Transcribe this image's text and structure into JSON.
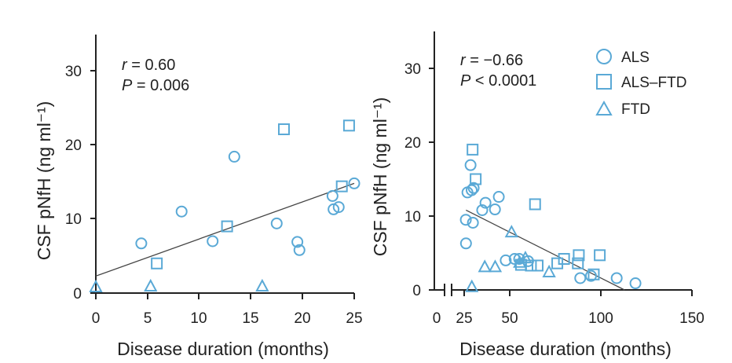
{
  "colors": {
    "marker": "#5aa9d6",
    "axis": "#222222",
    "fit_line": "#444444"
  },
  "legend": [
    {
      "label": "ALS",
      "shape": "circle"
    },
    {
      "label": "ALS–FTD",
      "shape": "square"
    },
    {
      "label": "FTD",
      "shape": "triangle"
    }
  ],
  "chart_data": [
    {
      "type": "scatter",
      "title": "",
      "xlabel": "Disease duration (months)",
      "ylabel": "CSF pNfH (ng ml⁻¹)",
      "xlim": [
        0,
        25
      ],
      "ylim": [
        0,
        35
      ],
      "xticks": [
        "0",
        "5",
        "10",
        "15",
        "20",
        "25"
      ],
      "yticks": [
        "0",
        "10",
        "20",
        "30"
      ],
      "stats": {
        "r_label": "r",
        "r_value": " = 0.60",
        "p_label": "P",
        "p_value": " = 0.006"
      },
      "fit_line": {
        "x": [
          0,
          25
        ],
        "y": [
          2.3,
          14.8
        ]
      },
      "series": [
        {
          "name": "ALS",
          "shape": "circle",
          "points": [
            [
              4.4,
              6.7
            ],
            [
              8.3,
              11.0
            ],
            [
              11.3,
              7.0
            ],
            [
              13.4,
              18.4
            ],
            [
              17.5,
              9.4
            ],
            [
              19.5,
              6.9
            ],
            [
              19.7,
              5.8
            ],
            [
              22.9,
              13.1
            ],
            [
              23.0,
              11.3
            ],
            [
              23.5,
              11.6
            ],
            [
              25.0,
              14.8
            ]
          ]
        },
        {
          "name": "ALS–FTD",
          "shape": "square",
          "points": [
            [
              5.9,
              4.0
            ],
            [
              12.7,
              9.0
            ],
            [
              18.2,
              22.1
            ],
            [
              23.8,
              14.4
            ],
            [
              24.5,
              22.6
            ]
          ]
        },
        {
          "name": "FTD",
          "shape": "triangle",
          "points": [
            [
              0.0,
              0.8
            ],
            [
              5.3,
              0.9
            ],
            [
              16.1,
              0.9
            ]
          ]
        }
      ]
    },
    {
      "type": "scatter",
      "title": "",
      "xlabel": "Disease duration (months)",
      "ylabel": "CSF pNfH (ng ml⁻¹)",
      "xlim": [
        25,
        150
      ],
      "ylim": [
        0,
        35
      ],
      "axis_break": true,
      "xticks": [
        "0",
        "25",
        "50",
        "100",
        "150"
      ],
      "yticks": [
        "0",
        "10",
        "20",
        "30"
      ],
      "stats": {
        "r_label": "r",
        "r_value": " = −0.66",
        "p_label": "P",
        "p_value": " < 0.0001"
      },
      "fit_line": {
        "x": [
          26,
          113
        ],
        "y": [
          10.8,
          0.0
        ]
      },
      "series": [
        {
          "name": "ALS",
          "shape": "circle",
          "points": [
            [
              25.9,
              9.5
            ],
            [
              26.0,
              6.3
            ],
            [
              26.8,
              13.2
            ],
            [
              28.5,
              16.9
            ],
            [
              29.1,
              13.5
            ],
            [
              29.8,
              9.1
            ],
            [
              30.2,
              13.8
            ],
            [
              34.9,
              10.8
            ],
            [
              36.7,
              11.8
            ],
            [
              41.9,
              10.9
            ],
            [
              44.0,
              12.6
            ],
            [
              47.8,
              4.0
            ],
            [
              52.7,
              4.2
            ],
            [
              55.2,
              4.2
            ],
            [
              60.1,
              3.9
            ],
            [
              88.7,
              1.6
            ],
            [
              94.6,
              1.9
            ],
            [
              108.7,
              1.6
            ],
            [
              119.0,
              0.9
            ]
          ]
        },
        {
          "name": "ALS–FTD",
          "shape": "square",
          "points": [
            [
              29.6,
              19.0
            ],
            [
              31.3,
              15.0
            ],
            [
              56.2,
              3.4
            ],
            [
              61.6,
              3.3
            ],
            [
              65.3,
              3.3
            ],
            [
              63.9,
              11.6
            ],
            [
              76.1,
              3.6
            ],
            [
              79.8,
              4.2
            ],
            [
              87.9,
              4.7
            ],
            [
              96.1,
              2.1
            ],
            [
              99.4,
              4.7
            ],
            [
              87.4,
              3.6
            ]
          ]
        },
        {
          "name": "FTD",
          "shape": "triangle",
          "points": [
            [
              29.2,
              0.4
            ],
            [
              36.3,
              3.1
            ],
            [
              42.0,
              3.1
            ],
            [
              51.0,
              7.8
            ],
            [
              55.5,
              3.7
            ],
            [
              58.6,
              4.3
            ],
            [
              71.6,
              2.4
            ]
          ]
        }
      ]
    }
  ]
}
